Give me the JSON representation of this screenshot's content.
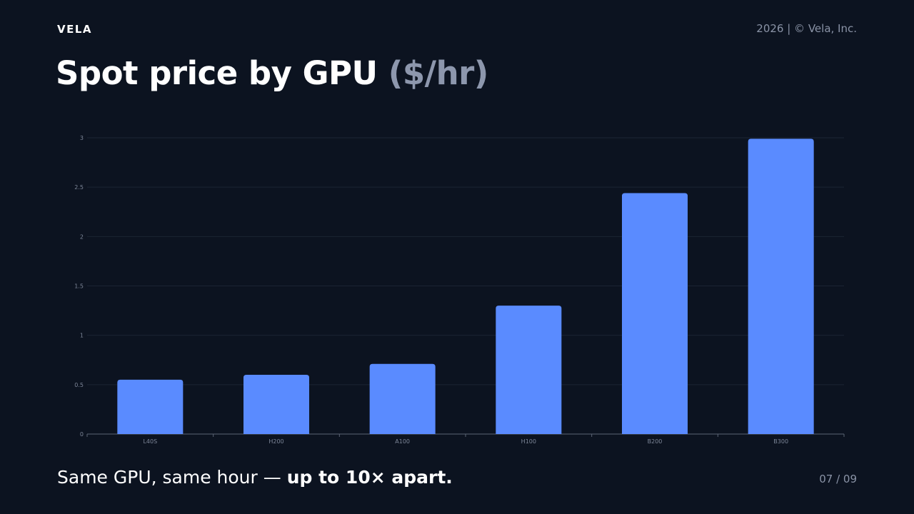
{
  "header": {
    "brand": "VELA",
    "copyright": "2026 | © Vela, Inc."
  },
  "slide": {
    "title": "Spot price by GPU",
    "title_unit": "($/hr)"
  },
  "footer": {
    "text_plain": "Same GPU, same hour — ",
    "text_bold": "up to 10× apart.",
    "page": "07 / 09"
  },
  "colors": {
    "background": "#0c1320",
    "bar": "#5a8bff",
    "grid": "#1b2433",
    "axis": "#5b6475",
    "tick_text": "#7d8698"
  },
  "chart_data": {
    "type": "bar",
    "categories": [
      "L40S",
      "H200",
      "A100",
      "H100",
      "B200",
      "B300"
    ],
    "values": [
      0.55,
      0.6,
      0.71,
      1.3,
      2.44,
      2.99
    ],
    "yticks": [
      0,
      0.5,
      1,
      1.5,
      2,
      2.5,
      3
    ],
    "ylim": [
      0,
      3
    ],
    "grid": true
  }
}
